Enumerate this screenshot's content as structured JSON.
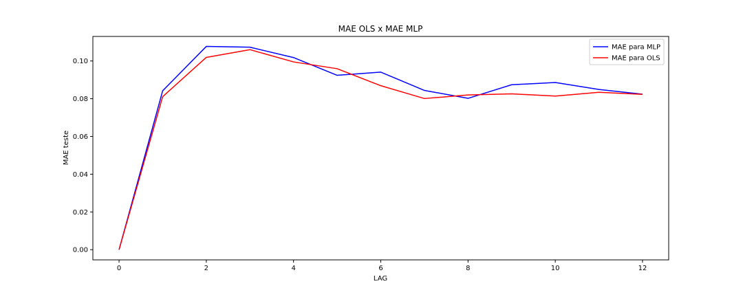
{
  "chart_data": {
    "type": "line",
    "title": "MAE OLS x MAE MLP",
    "xlabel": "LAG",
    "ylabel": "MAE teste",
    "x": [
      0,
      1,
      2,
      3,
      4,
      5,
      6,
      7,
      8,
      9,
      10,
      11,
      12
    ],
    "xlim": [
      -0.6,
      12.6
    ],
    "ylim": [
      -0.0054,
      0.113
    ],
    "xticks": [
      0,
      2,
      4,
      6,
      8,
      10,
      12
    ],
    "yticks": [
      0.0,
      0.02,
      0.04,
      0.06,
      0.08,
      0.1
    ],
    "ytick_labels": [
      "0.00",
      "0.02",
      "0.04",
      "0.06",
      "0.08",
      "0.10"
    ],
    "grid": false,
    "legend_position": "top-right",
    "series": [
      {
        "name": "MAE para MLP",
        "color": "#0000ff",
        "values": [
          0.0,
          0.0842,
          0.1077,
          0.1073,
          0.1018,
          0.0924,
          0.0941,
          0.0844,
          0.0802,
          0.0874,
          0.0886,
          0.0849,
          0.0824
        ]
      },
      {
        "name": "MAE para OLS",
        "color": "#ff0000",
        "values": [
          0.0,
          0.0811,
          0.1019,
          0.106,
          0.0995,
          0.0959,
          0.0869,
          0.0801,
          0.082,
          0.0826,
          0.0814,
          0.0834,
          0.0823
        ]
      }
    ]
  }
}
